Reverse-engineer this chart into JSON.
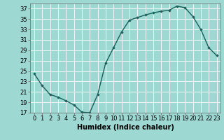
{
  "title": "",
  "xlabel": "Humidex (Indice chaleur)",
  "ylabel": "",
  "background_color": "#9ed8d3",
  "grid_color": "#ffffff",
  "line_color": "#1a5f5a",
  "marker_color": "#1a5f5a",
  "x": [
    0,
    1,
    2,
    3,
    4,
    5,
    6,
    7,
    8,
    9,
    10,
    11,
    12,
    13,
    14,
    15,
    16,
    17,
    18,
    19,
    20,
    21,
    22,
    23
  ],
  "y": [
    24.5,
    22.2,
    20.5,
    20.0,
    19.3,
    18.5,
    17.1,
    17.0,
    20.5,
    26.5,
    29.5,
    32.5,
    34.8,
    35.3,
    35.8,
    36.2,
    36.5,
    36.7,
    37.5,
    37.2,
    35.5,
    33.0,
    29.5,
    28.0
  ],
  "ylim": [
    17,
    38
  ],
  "xlim": [
    -0.5,
    23.5
  ],
  "yticks": [
    17,
    19,
    21,
    23,
    25,
    27,
    29,
    31,
    33,
    35,
    37
  ],
  "xticks": [
    0,
    1,
    2,
    3,
    4,
    5,
    6,
    7,
    8,
    9,
    10,
    11,
    12,
    13,
    14,
    15,
    16,
    17,
    18,
    19,
    20,
    21,
    22,
    23
  ],
  "xtick_labels": [
    "0",
    "1",
    "2",
    "3",
    "4",
    "5",
    "6",
    "7",
    "8",
    "9",
    "10",
    "11",
    "12",
    "13",
    "14",
    "15",
    "16",
    "17",
    "18",
    "19",
    "20",
    "21",
    "22",
    "23"
  ],
  "marker_style": "D",
  "marker_size": 1.8,
  "line_width": 1.0,
  "font_size": 6.0,
  "xlabel_fontsize": 7.0
}
